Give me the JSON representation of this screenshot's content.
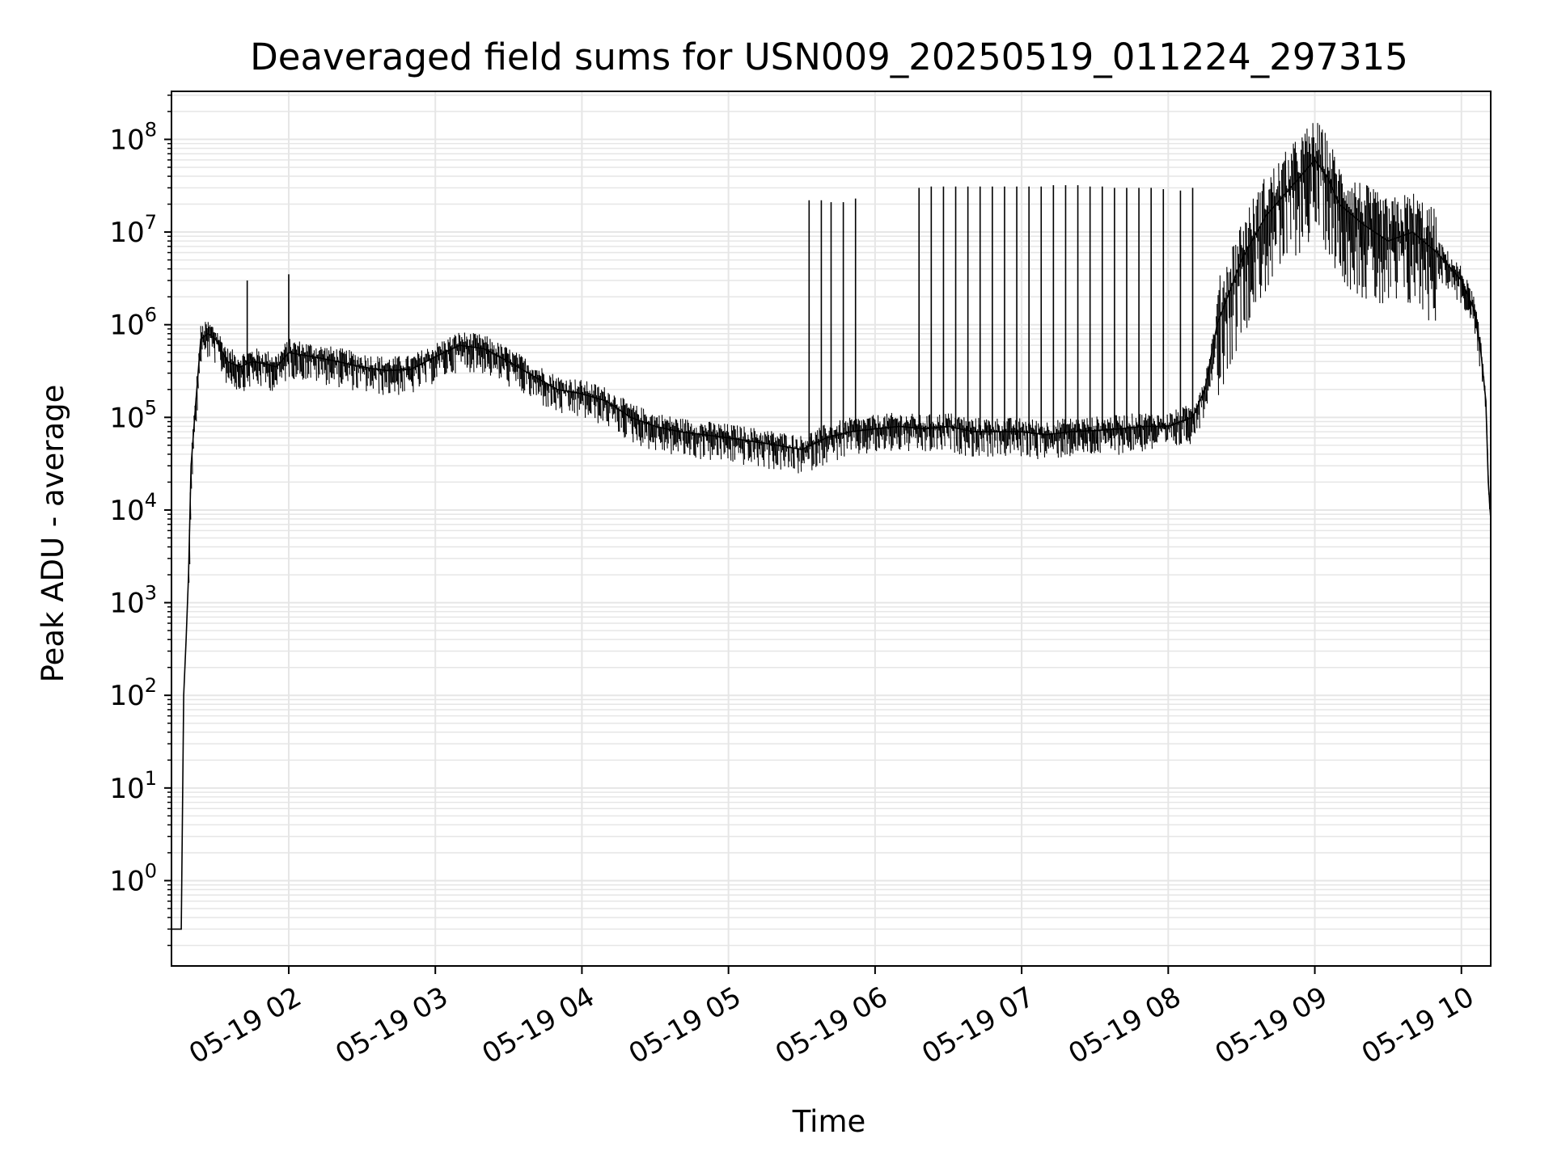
{
  "chart_data": {
    "type": "line",
    "title": "Deaveraged field sums for USN009_20250519_011224_297315",
    "xlabel": "Time",
    "ylabel": "Peak ADU - average",
    "yscale": "log",
    "ylim": [
      0.12,
      330000000.0
    ],
    "xlim": [
      "2025-05-19 01:12",
      "2025-05-19 10:12"
    ],
    "grid": true,
    "line_color": "#000000",
    "grid_color": "#e6e6e6",
    "x_ticks": [
      "05-19 02",
      "05-19 03",
      "05-19 04",
      "05-19 05",
      "05-19 06",
      "05-19 07",
      "05-19 08",
      "05-19 09",
      "05-19 10"
    ],
    "y_ticks": [
      {
        "value": 1,
        "base": "10",
        "exp": "0"
      },
      {
        "value": 10,
        "base": "10",
        "exp": "1"
      },
      {
        "value": 100,
        "base": "10",
        "exp": "2"
      },
      {
        "value": 1000,
        "base": "10",
        "exp": "3"
      },
      {
        "value": 10000,
        "base": "10",
        "exp": "4"
      },
      {
        "value": 100000,
        "base": "10",
        "exp": "5"
      },
      {
        "value": 1000000,
        "base": "10",
        "exp": "6"
      },
      {
        "value": 10000000,
        "base": "10",
        "exp": "7"
      },
      {
        "value": 100000000,
        "base": "10",
        "exp": "8"
      }
    ],
    "series": [
      {
        "x": [
          "2025-05-19 01:12",
          "2025-05-19 01:16",
          "2025-05-19 01:17",
          "2025-05-19 01:18",
          "2025-05-19 01:19",
          "2025-05-19 01:20",
          "2025-05-19 01:22",
          "2025-05-19 01:24",
          "2025-05-19 01:27",
          "2025-05-19 01:30",
          "2025-05-19 01:35",
          "2025-05-19 01:40",
          "2025-05-19 01:45",
          "2025-05-19 01:50",
          "2025-05-19 01:55",
          "2025-05-19 02:00",
          "2025-05-19 02:10",
          "2025-05-19 02:20",
          "2025-05-19 02:30",
          "2025-05-19 02:40",
          "2025-05-19 02:50",
          "2025-05-19 03:00",
          "2025-05-19 03:10",
          "2025-05-19 03:20",
          "2025-05-19 03:30",
          "2025-05-19 03:40",
          "2025-05-19 03:50",
          "2025-05-19 04:00",
          "2025-05-19 04:10",
          "2025-05-19 04:20",
          "2025-05-19 04:30",
          "2025-05-19 04:40",
          "2025-05-19 04:50",
          "2025-05-19 05:00",
          "2025-05-19 05:10",
          "2025-05-19 05:20",
          "2025-05-19 05:30",
          "2025-05-19 05:40",
          "2025-05-19 05:50",
          "2025-05-19 06:00",
          "2025-05-19 06:10",
          "2025-05-19 06:20",
          "2025-05-19 06:30",
          "2025-05-19 06:40",
          "2025-05-19 06:50",
          "2025-05-19 07:00",
          "2025-05-19 07:10",
          "2025-05-19 07:20",
          "2025-05-19 07:30",
          "2025-05-19 07:40",
          "2025-05-19 07:50",
          "2025-05-19 08:00",
          "2025-05-19 08:10",
          "2025-05-19 08:15",
          "2025-05-19 08:20",
          "2025-05-19 08:30",
          "2025-05-19 08:40",
          "2025-05-19 08:50",
          "2025-05-19 09:00",
          "2025-05-19 09:05",
          "2025-05-19 09:10",
          "2025-05-19 09:20",
          "2025-05-19 09:30",
          "2025-05-19 09:40",
          "2025-05-19 09:50",
          "2025-05-19 10:00",
          "2025-05-19 10:05",
          "2025-05-19 10:08",
          "2025-05-19 10:10",
          "2025-05-19 10:11",
          "2025-05-19 10:12"
        ],
        "y": [
          0.3,
          0.3,
          100,
          400,
          2000,
          30000,
          150000,
          700000,
          800000,
          700000,
          400000,
          350000,
          400000,
          380000,
          350000,
          500000,
          450000,
          400000,
          350000,
          320000,
          330000,
          450000,
          600000,
          550000,
          400000,
          280000,
          200000,
          180000,
          150000,
          100000,
          80000,
          70000,
          65000,
          60000,
          55000,
          50000,
          45000,
          60000,
          70000,
          75000,
          80000,
          75000,
          80000,
          70000,
          70000,
          70000,
          65000,
          70000,
          72000,
          75000,
          80000,
          80000,
          100000,
          200000,
          1000000,
          5000000,
          15000000,
          30000000,
          60000000,
          40000000,
          20000000,
          12000000,
          8000000,
          10000000,
          6000000,
          3000000,
          1500000,
          500000,
          150000,
          20000,
          8000
        ],
        "spikes": [
          {
            "x": "2025-05-19 02:00",
            "y": 3500000
          },
          {
            "x": "2025-05-19 01:43",
            "y": 3000000
          },
          {
            "x": "2025-05-19 05:33",
            "y": 22000000
          },
          {
            "x": "2025-05-19 05:38",
            "y": 22000000
          },
          {
            "x": "2025-05-19 05:42",
            "y": 21000000
          },
          {
            "x": "2025-05-19 05:47",
            "y": 21000000
          },
          {
            "x": "2025-05-19 05:52",
            "y": 23000000
          },
          {
            "x": "2025-05-19 06:18",
            "y": 30000000
          },
          {
            "x": "2025-05-19 06:23",
            "y": 31000000
          },
          {
            "x": "2025-05-19 06:28",
            "y": 31000000
          },
          {
            "x": "2025-05-19 06:33",
            "y": 31000000
          },
          {
            "x": "2025-05-19 06:38",
            "y": 31000000
          },
          {
            "x": "2025-05-19 06:43",
            "y": 31000000
          },
          {
            "x": "2025-05-19 06:48",
            "y": 31000000
          },
          {
            "x": "2025-05-19 06:53",
            "y": 31000000
          },
          {
            "x": "2025-05-19 06:58",
            "y": 31000000
          },
          {
            "x": "2025-05-19 07:03",
            "y": 31000000
          },
          {
            "x": "2025-05-19 07:08",
            "y": 31000000
          },
          {
            "x": "2025-05-19 07:13",
            "y": 32000000
          },
          {
            "x": "2025-05-19 07:18",
            "y": 32000000
          },
          {
            "x": "2025-05-19 07:23",
            "y": 32000000
          },
          {
            "x": "2025-05-19 07:28",
            "y": 31000000
          },
          {
            "x": "2025-05-19 07:33",
            "y": 31000000
          },
          {
            "x": "2025-05-19 07:38",
            "y": 30000000
          },
          {
            "x": "2025-05-19 07:43",
            "y": 30000000
          },
          {
            "x": "2025-05-19 07:48",
            "y": 30000000
          },
          {
            "x": "2025-05-19 07:53",
            "y": 30000000
          },
          {
            "x": "2025-05-19 07:58",
            "y": 29000000
          },
          {
            "x": "2025-05-19 08:05",
            "y": 28000000
          },
          {
            "x": "2025-05-19 08:10",
            "y": 30000000
          }
        ]
      }
    ]
  }
}
